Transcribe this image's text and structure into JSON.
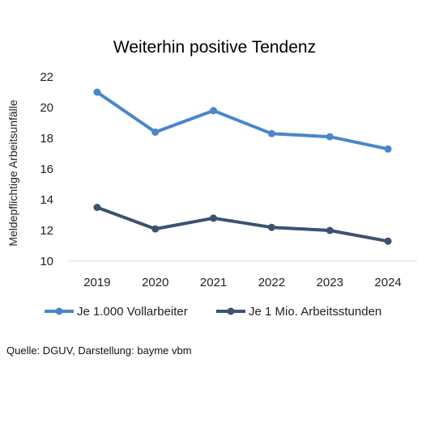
{
  "chart_data": {
    "type": "line",
    "title": "Weiterhin positive Tendenz",
    "xlabel": "",
    "ylabel": "Meldepflichtige Arbeitsunfälle",
    "categories": [
      "2019",
      "2020",
      "2021",
      "2022",
      "2023",
      "2024"
    ],
    "ylim": [
      10,
      22
    ],
    "yticks": [
      10,
      12,
      14,
      16,
      18,
      20,
      22
    ],
    "grid": false,
    "legend_position": "bottom",
    "series": [
      {
        "name": "Je 1.000 Vollarbeiter",
        "values": [
          21.0,
          18.4,
          19.8,
          18.3,
          18.1,
          17.3
        ],
        "color": "#4a86c8"
      },
      {
        "name": "Je 1 Mio. Arbeitsstunden",
        "values": [
          13.5,
          12.1,
          12.8,
          12.2,
          12.0,
          11.3
        ],
        "color": "#3b5270"
      }
    ]
  },
  "source": "Quelle: DGUV, Darstellung: bayme vbm"
}
